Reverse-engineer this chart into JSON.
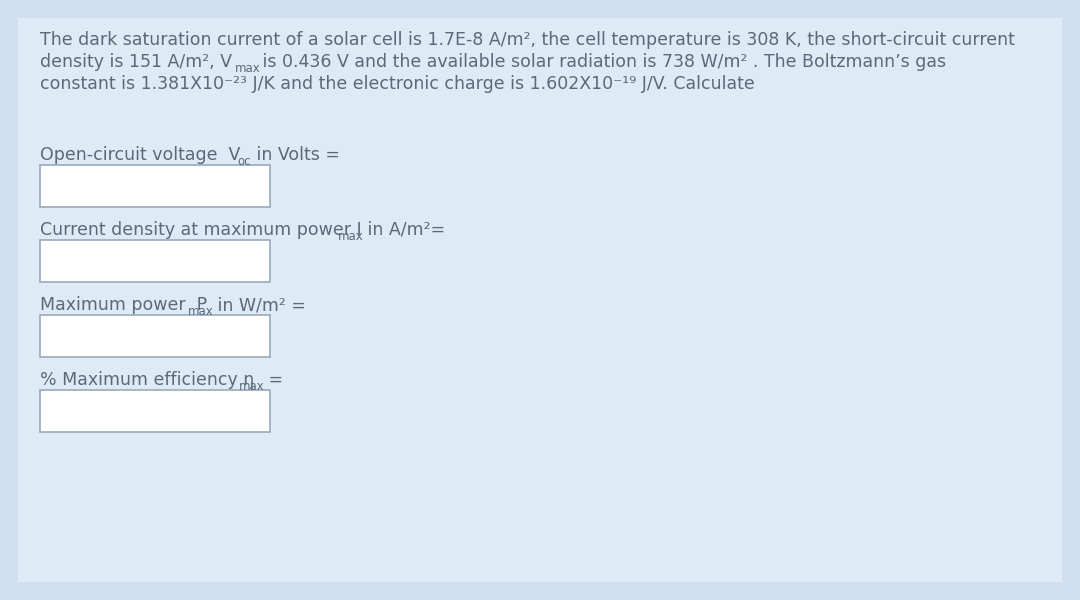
{
  "bg_color": "#cfe0f0",
  "text_color": "#5a6a7a",
  "box_border_color": "#9aaabb",
  "font_size": 12.5,
  "sub_font_size": 8.5,
  "line1": "The dark saturation current of a solar cell is 1.7E-8 A/m², the cell temperature is 308 K, the short-circuit current",
  "line2a": "density is 151 A/m², V",
  "line2_sub": "max",
  "line2b": " is 0.436 V and the available solar radiation is 738 W/m² . The Boltzmann’s gas",
  "line3": "constant is 1.381X10⁻²³ J/K and the electronic charge is 1.602X10⁻¹⁹ J/V. Calculate",
  "q1a": "Open-circuit voltage  V",
  "q1_sub": "oc",
  "q1b": " in Volts =",
  "q2a": "Current density at maximum power I",
  "q2_sub": "max",
  "q2b": " in A/m²=",
  "q3a": "Maximum power  P",
  "q3_sub": "max",
  "q3b": " in W/m² =",
  "q4a": "% Maximum efficiency η",
  "q4_sub": "max",
  "q4b": " ="
}
